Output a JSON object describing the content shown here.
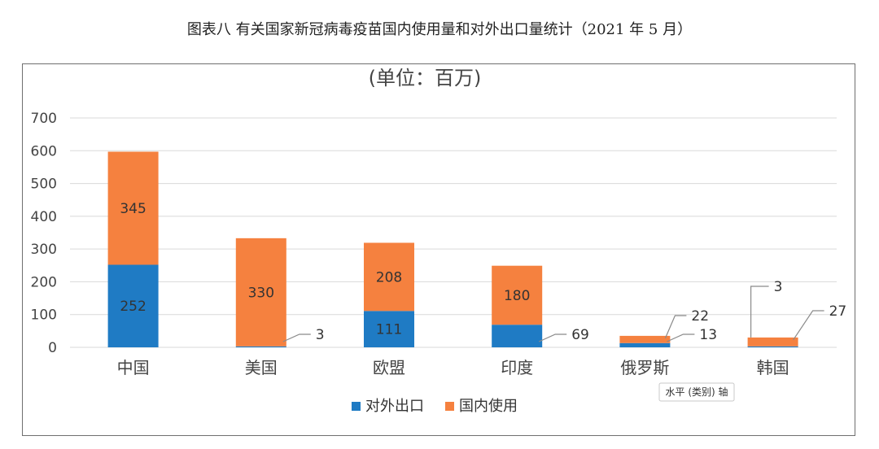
{
  "document": {
    "caption": "图表八 有关国家新冠病毒疫苗国内使用量和对外出口量统计（2021 年 5 月）"
  },
  "chart_data": {
    "type": "bar",
    "stacked": true,
    "title": "(单位：百万)",
    "categories": [
      "中国",
      "美国",
      "欧盟",
      "印度",
      "俄罗斯",
      "韩国"
    ],
    "series": [
      {
        "name": "对外出口",
        "color": "#1f7bc4",
        "values": [
          252,
          3,
          111,
          69,
          13,
          3
        ]
      },
      {
        "name": "国内使用",
        "color": "#f5813f",
        "values": [
          345,
          330,
          208,
          180,
          22,
          27
        ]
      }
    ],
    "ylim": [
      0,
      700
    ],
    "yticks": [
      0,
      100,
      200,
      300,
      400,
      500,
      600,
      700
    ],
    "grid": true,
    "legend_position": "bottom",
    "tooltip": "水平 (类别) 轴"
  }
}
